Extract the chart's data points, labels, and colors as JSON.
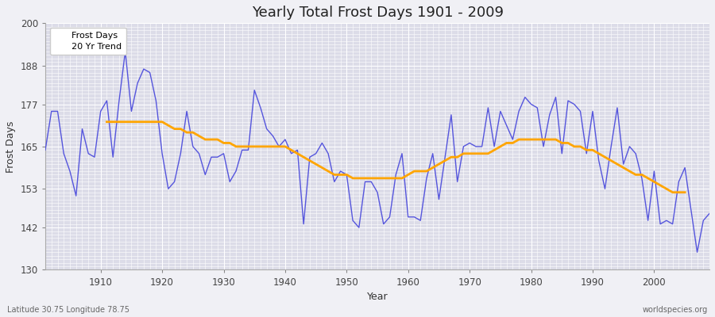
{
  "title": "Yearly Total Frost Days 1901 - 2009",
  "xlabel": "Year",
  "ylabel": "Frost Days",
  "lat_lon_label": "Latitude 30.75 Longitude 78.75",
  "watermark": "worldspecies.org",
  "ylim": [
    130,
    200
  ],
  "yticks": [
    130,
    142,
    153,
    165,
    177,
    188,
    200
  ],
  "xlim": [
    1901,
    2009
  ],
  "xticks": [
    1910,
    1920,
    1930,
    1940,
    1950,
    1960,
    1970,
    1980,
    1990,
    2000
  ],
  "frost_color": "#5555dd",
  "trend_color": "#FFA500",
  "fig_bg_color": "#f0f0f5",
  "plot_bg_color": "#dcdce8",
  "grid_color": "#ffffff",
  "frost_days": {
    "1901": 164,
    "1902": 175,
    "1903": 175,
    "1904": 163,
    "1905": 158,
    "1906": 151,
    "1907": 170,
    "1908": 163,
    "1909": 162,
    "1910": 175,
    "1911": 178,
    "1912": 162,
    "1913": 178,
    "1914": 192,
    "1915": 175,
    "1916": 183,
    "1917": 187,
    "1918": 186,
    "1919": 178,
    "1920": 163,
    "1921": 153,
    "1922": 155,
    "1923": 163,
    "1924": 175,
    "1925": 165,
    "1926": 163,
    "1927": 157,
    "1928": 162,
    "1929": 162,
    "1930": 163,
    "1931": 155,
    "1932": 158,
    "1933": 164,
    "1934": 164,
    "1935": 181,
    "1936": 176,
    "1937": 170,
    "1938": 168,
    "1939": 165,
    "1940": 167,
    "1941": 163,
    "1942": 164,
    "1943": 143,
    "1944": 162,
    "1945": 163,
    "1946": 166,
    "1947": 163,
    "1948": 155,
    "1949": 158,
    "1950": 157,
    "1951": 144,
    "1952": 142,
    "1953": 155,
    "1954": 155,
    "1955": 152,
    "1956": 143,
    "1957": 145,
    "1958": 157,
    "1959": 163,
    "1960": 145,
    "1961": 145,
    "1962": 144,
    "1963": 156,
    "1964": 163,
    "1965": 150,
    "1966": 162,
    "1967": 174,
    "1968": 155,
    "1969": 165,
    "1970": 166,
    "1971": 165,
    "1972": 165,
    "1973": 176,
    "1974": 165,
    "1975": 175,
    "1976": 171,
    "1977": 167,
    "1978": 175,
    "1979": 179,
    "1980": 177,
    "1981": 176,
    "1982": 165,
    "1983": 174,
    "1984": 179,
    "1985": 163,
    "1986": 178,
    "1987": 177,
    "1988": 175,
    "1989": 163,
    "1990": 175,
    "1991": 161,
    "1992": 153,
    "1993": 165,
    "1994": 176,
    "1995": 160,
    "1996": 165,
    "1997": 163,
    "1998": 156,
    "1999": 144,
    "2000": 158,
    "2001": 143,
    "2002": 144,
    "2003": 143,
    "2004": 155,
    "2005": 159,
    "2006": 147,
    "2007": 135,
    "2008": 144,
    "2009": 146
  },
  "trend_20yr": {
    "1911": 172,
    "1912": 172,
    "1913": 172,
    "1914": 172,
    "1915": 172,
    "1916": 172,
    "1917": 172,
    "1918": 172,
    "1919": 172,
    "1920": 172,
    "1921": 171,
    "1922": 170,
    "1923": 170,
    "1924": 169,
    "1925": 169,
    "1926": 168,
    "1927": 167,
    "1928": 167,
    "1929": 167,
    "1930": 166,
    "1931": 166,
    "1932": 165,
    "1933": 165,
    "1934": 165,
    "1935": 165,
    "1936": 165,
    "1937": 165,
    "1938": 165,
    "1939": 165,
    "1940": 165,
    "1941": 164,
    "1942": 163,
    "1943": 162,
    "1944": 161,
    "1945": 160,
    "1946": 159,
    "1947": 158,
    "1948": 157,
    "1949": 157,
    "1950": 157,
    "1951": 156,
    "1952": 156,
    "1953": 156,
    "1954": 156,
    "1955": 156,
    "1956": 156,
    "1957": 156,
    "1958": 156,
    "1959": 156,
    "1960": 157,
    "1961": 158,
    "1962": 158,
    "1963": 158,
    "1964": 159,
    "1965": 160,
    "1966": 161,
    "1967": 162,
    "1968": 162,
    "1969": 163,
    "1970": 163,
    "1971": 163,
    "1972": 163,
    "1973": 163,
    "1974": 164,
    "1975": 165,
    "1976": 166,
    "1977": 166,
    "1978": 167,
    "1979": 167,
    "1980": 167,
    "1981": 167,
    "1982": 167,
    "1983": 167,
    "1984": 167,
    "1985": 166,
    "1986": 166,
    "1987": 165,
    "1988": 165,
    "1989": 164,
    "1990": 164,
    "1991": 163,
    "1992": 162,
    "1993": 161,
    "1994": 160,
    "1995": 159,
    "1996": 158,
    "1997": 157,
    "1998": 157,
    "1999": 156,
    "2000": 155,
    "2001": 154,
    "2002": 153,
    "2003": 152,
    "2004": 152,
    "2005": 152
  }
}
